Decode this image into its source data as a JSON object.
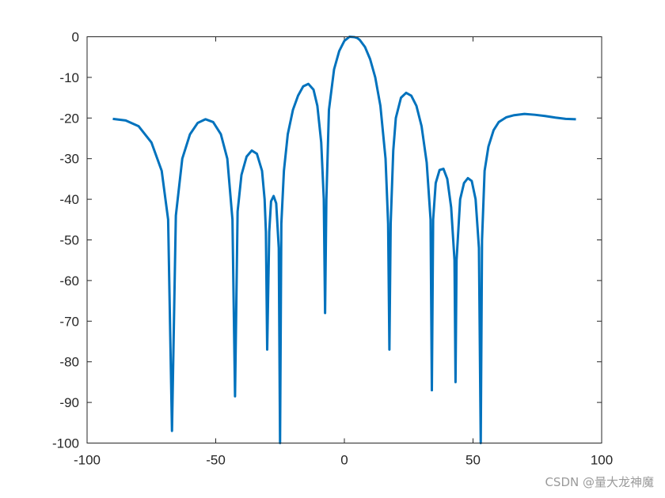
{
  "chart_data": {
    "type": "line",
    "title": "",
    "xlabel": "",
    "ylabel": "",
    "xlim": [
      -100,
      100
    ],
    "ylim": [
      -100,
      0
    ],
    "x_ticks": [
      -100,
      -50,
      0,
      50,
      100
    ],
    "y_ticks": [
      0,
      -10,
      -20,
      -30,
      -40,
      -50,
      -60,
      -70,
      -80,
      -90,
      -100
    ],
    "grid": false,
    "line_color": "#0072BD",
    "series": [
      {
        "x": [
          -90,
          -85,
          -80,
          -75,
          -71,
          -68.5,
          -67,
          -65.5,
          -63,
          -60,
          -57,
          -54,
          -51,
          -48,
          -45.5,
          -43.5,
          -42.5,
          -41.5,
          -40,
          -38,
          -36,
          -34,
          -32,
          -31,
          -30.5,
          -30,
          -29.2,
          -28.5,
          -27.5,
          -26.5,
          -25.5,
          -25,
          -24.5,
          -23.5,
          -22,
          -20,
          -18,
          -16,
          -14,
          -12,
          -10.5,
          -9,
          -8,
          -7.5,
          -7,
          -6,
          -4,
          -2,
          0,
          2,
          4,
          5,
          6,
          8,
          10,
          12,
          14,
          16,
          17,
          17.5,
          18,
          19,
          20,
          22,
          24,
          26,
          28,
          30,
          32,
          33.5,
          34,
          34.5,
          35.5,
          37,
          38.5,
          40,
          41.5,
          42.8,
          43.2,
          43.6,
          45,
          46.5,
          48,
          49.5,
          51,
          52.3,
          53,
          53.5,
          54.5,
          56,
          58,
          60,
          63,
          66,
          70,
          74,
          78,
          82,
          86,
          90
        ],
        "y": [
          -20.2,
          -20.6,
          -22,
          -26,
          -33,
          -45,
          -97,
          -44,
          -30,
          -24,
          -21.2,
          -20.3,
          -21,
          -24,
          -30,
          -45,
          -88.5,
          -43,
          -34,
          -29.5,
          -28,
          -28.8,
          -33,
          -40,
          -48,
          -77,
          -48,
          -40.5,
          -39.2,
          -41,
          -52,
          -100,
          -46,
          -33,
          -24,
          -18,
          -14.5,
          -12.2,
          -11.6,
          -13,
          -17,
          -26,
          -40,
          -68,
          -40,
          -18,
          -8,
          -3.5,
          -1,
          0,
          -0.1,
          -0.3,
          -0.8,
          -2.5,
          -5.5,
          -10,
          -17,
          -30,
          -46,
          -77,
          -46,
          -28,
          -20,
          -15,
          -13.8,
          -14.5,
          -17,
          -22,
          -31,
          -45,
          -87,
          -45,
          -36,
          -32.8,
          -32.5,
          -35,
          -42,
          -55,
          -85,
          -55,
          -40,
          -36,
          -34.8,
          -35.5,
          -40,
          -52,
          -100,
          -50,
          -33,
          -27,
          -23,
          -21,
          -19.8,
          -19.3,
          -19,
          -19.2,
          -19.5,
          -19.9,
          -20.2,
          -20.3
        ]
      }
    ]
  },
  "watermark": "CSDN @量大龙神魔"
}
